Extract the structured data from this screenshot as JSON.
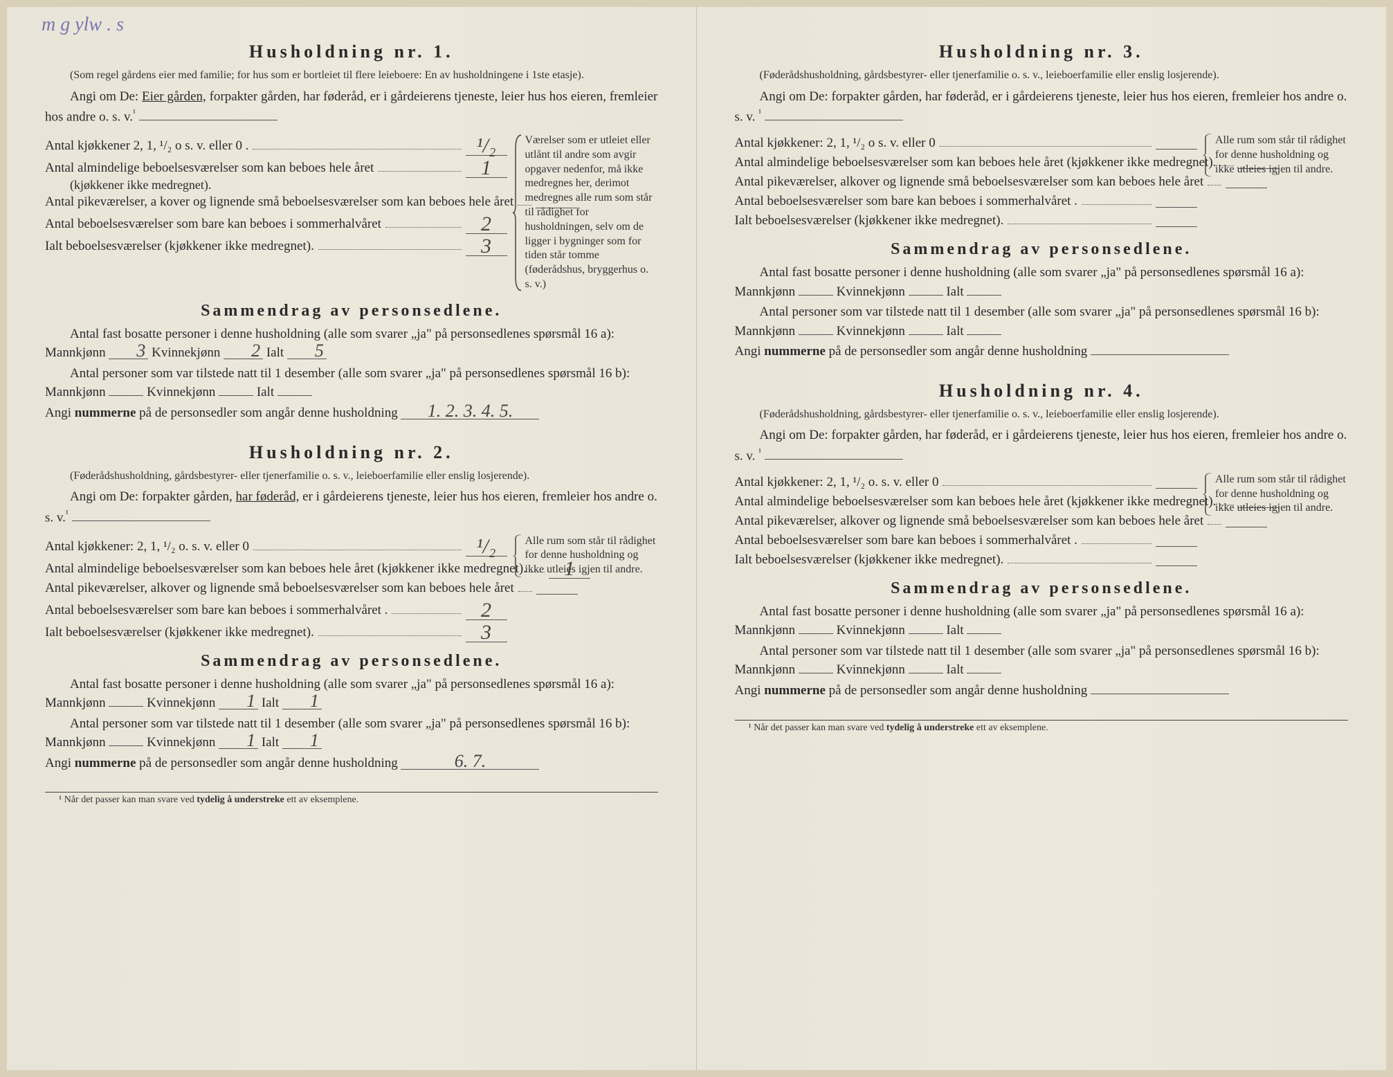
{
  "handwriting_top": "m g ylw . s",
  "households": [
    {
      "title": "Husholdning nr. 1.",
      "subtitle": "(Som regel gårdens eier med familie; for hus som er bortleiet til flere leieboere: En av husholdningene i 1ste etasje).",
      "instruction_a": "Angi om De: ",
      "instruction_underlined": "Eier gården,",
      "instruction_b": " forpakter gården, har føderåd, er i gårdeierens tjeneste, leier hus hos eieren, fremleier hos andre o. s. v.",
      "rows": {
        "r1": {
          "label": "Antal kjøkkener 2, 1, ¹/₂ o s. v. eller 0 .",
          "value": "¹/₂"
        },
        "r2": {
          "label": "Antal almindelige beboelsesværelser som kan beboes hele året",
          "sublabel": "(kjøkkener ikke medregnet).",
          "value": "1"
        },
        "r3": {
          "label": "Antal pikeværelser, a kover og lignende små beboelsesværelser som kan beboes hele året",
          "value": ""
        },
        "r4": {
          "label": "Antal beboelsesværelser som bare kan beboes i sommerhalvåret",
          "value": "2"
        },
        "r5": {
          "label": "Ialt beboelsesværelser (kjøkkener ikke medregnet).",
          "value": "3"
        }
      },
      "sidenote": "Værelser som er utleiet eller utlånt til andre som avgir opgaver nedenfor, må ikke medregnes her, derimot medregnes alle rum som står til rådighet for husholdningen, selv om de ligger i bygninger som for tiden står tomme (føderådshus, bryggerhus o. s. v.)",
      "summary_title": "Sammendrag av personsedlene.",
      "summary_p1a": "Antal fast bosatte personer i denne husholdning (alle som svarer „ja\" på personsedlenes spørsmål 16 a): Mannkjønn",
      "summary_p1_m": "3",
      "summary_p1b": "Kvinnekjønn",
      "summary_p1_k": "2",
      "summary_p1c": "Ialt",
      "summary_p1_t": "5",
      "summary_p2a": "Antal personer som var tilstede natt til 1 desember (alle som svarer „ja\" på personsedlenes spørsmål 16 b): Mannkjønn",
      "summary_p2_m": "",
      "summary_p2b": "Kvinnekjønn",
      "summary_p2_k": "",
      "summary_p2c": "Ialt",
      "summary_p2_t": "",
      "summary_p3a": "Angi ",
      "summary_p3b": "nummerne",
      "summary_p3c": " på de personsedler som angår denne husholdning",
      "summary_p3_v": "1. 2. 3. 4. 5."
    },
    {
      "title": "Husholdning nr. 2.",
      "subtitle": "(Føderådshusholdning, gårdsbestyrer- eller tjenerfamilie o. s. v., leieboerfamilie eller enslig losjerende).",
      "instruction_a": "Angi om De:  forpakter gården, ",
      "instruction_underlined": "har føderåd,",
      "instruction_b": " er i gårdeierens tjeneste, leier hus hos eieren, fremleier hos andre o. s. v.",
      "rows": {
        "r1": {
          "label": "Antal kjøkkener: 2, 1, ¹/₂ o. s. v. eller 0",
          "value": "¹/₂"
        },
        "r2": {
          "label": "Antal almindelige beboelsesværelser som kan beboes hele året (kjøkkener ikke medregnet).",
          "value": "1"
        },
        "r3": {
          "label": "Antal pikeværelser, alkover og lignende små beboelsesværelser som kan beboes hele året",
          "value": ""
        },
        "r4": {
          "label": "Antal beboelsesværelser som bare kan beboes i sommerhalvåret .",
          "value": "2"
        },
        "r5": {
          "label": "Ialt beboelsesværelser (kjøkkener ikke medregnet).",
          "value": "3"
        }
      },
      "sidenote": "Alle rum som står til rådighet for denne husholdning og ikke utleies igjen til andre.",
      "summary_title": "Sammendrag av personsedlene.",
      "summary_p1a": "Antal fast bosatte personer i denne husholdning (alle som svarer „ja\" på personsedlenes spørsmål 16 a): Mannkjønn",
      "summary_p1_m": "",
      "summary_p1b": "Kvinnekjønn",
      "summary_p1_k": "1",
      "summary_p1c": "Ialt",
      "summary_p1_t": "1",
      "summary_p2a": "Antal personer som var tilstede natt til 1 desember (alle som svarer „ja\" på personsedlenes spørsmål 16 b): Mannkjønn",
      "summary_p2_m": "",
      "summary_p2b": "Kvinnekjønn",
      "summary_p2_k": "1",
      "summary_p2c": "Ialt",
      "summary_p2_t": "1",
      "summary_p3a": "Angi ",
      "summary_p3b": "nummerne",
      "summary_p3c": " på de personsedler som angår denne husholdning",
      "summary_p3_v": "6. 7."
    },
    {
      "title": "Husholdning nr. 3.",
      "subtitle": "(Føderådshusholdning, gårdsbestyrer- eller tjenerfamilie o. s. v., leieboerfamilie eller enslig losjerende).",
      "instruction_a": "Angi om De:  forpakter gården, har føderåd, er i gårdeierens tjeneste, leier hus hos eieren, fremleier hos andre o. s. v.",
      "instruction_underlined": "",
      "instruction_b": "",
      "rows": {
        "r1": {
          "label": "Antal kjøkkener: 2, 1, ¹/₂ o s. v. eller 0",
          "value": ""
        },
        "r2": {
          "label": "Antal almindelige beboelsesværelser som kan beboes hele året (kjøkkener ikke medregnet).",
          "value": ""
        },
        "r3": {
          "label": "Antal pikeværelser, alkover og lignende små beboelsesværelser som kan beboes hele året",
          "value": ""
        },
        "r4": {
          "label": "Antal beboelsesværelser som bare kan beboes i sommerhalvåret .",
          "value": ""
        },
        "r5": {
          "label": "Ialt beboelsesværelser (kjøkkener ikke medregnet).",
          "value": ""
        }
      },
      "sidenote": "Alle rum som står til rådighet for denne husholdning og ikke utleies igjen til andre.",
      "summary_title": "Sammendrag av personsedlene.",
      "summary_p1a": "Antal fast bosatte personer i denne husholdning (alle som svarer „ja\" på personsedlenes spørsmål 16 a): Mannkjønn",
      "summary_p1_m": "",
      "summary_p1b": "Kvinnekjønn",
      "summary_p1_k": "",
      "summary_p1c": "Ialt",
      "summary_p1_t": "",
      "summary_p2a": "Antal personer som var tilstede natt til 1 desember (alle som svarer „ja\" på personsedlenes spørsmål 16 b): Mannkjønn",
      "summary_p2_m": "",
      "summary_p2b": "Kvinnekjønn",
      "summary_p2_k": "",
      "summary_p2c": "Ialt",
      "summary_p2_t": "",
      "summary_p3a": "Angi ",
      "summary_p3b": "nummerne",
      "summary_p3c": " på de personsedler som angår denne husholdning",
      "summary_p3_v": ""
    },
    {
      "title": "Husholdning nr. 4.",
      "subtitle": "(Føderådshusholdning, gårdsbestyrer- eller tjenerfamilie o. s. v., leieboerfamilie eller enslig losjerende).",
      "instruction_a": "Angi om De:  forpakter gården, har føderåd, er i gårdeierens tjeneste, leier hus hos eieren, fremleier hos andre o. s. v.",
      "instruction_underlined": "",
      "instruction_b": "",
      "rows": {
        "r1": {
          "label": "Antal kjøkkener: 2, 1, ¹/₂ o. s. v. eller 0",
          "value": ""
        },
        "r2": {
          "label": "Antal almindelige beboelsesværelser som kan beboes hele året (kjøkkener ikke medregnet).",
          "value": ""
        },
        "r3": {
          "label": "Antal pikeværelser, alkover og lignende små beboelsesværelser som kan beboes hele året",
          "value": ""
        },
        "r4": {
          "label": "Antal beboelsesværelser som bare kan beboes i sommerhalvåret .",
          "value": ""
        },
        "r5": {
          "label": "Ialt beboelsesværelser (kjøkkener ikke medregnet).",
          "value": ""
        }
      },
      "sidenote": "Alle rum som står til rådighet for denne husholdning og ikke utleies igjen til andre.",
      "summary_title": "Sammendrag av personsedlene.",
      "summary_p1a": "Antal fast bosatte personer i denne husholdning (alle som svarer „ja\" på personsedlenes spørsmål 16 a): Mannkjønn",
      "summary_p1_m": "",
      "summary_p1b": "Kvinnekjønn",
      "summary_p1_k": "",
      "summary_p1c": "Ialt",
      "summary_p1_t": "",
      "summary_p2a": "Antal personer som var tilstede natt til 1 desember (alle som svarer „ja\" på personsedlenes spørsmål 16 b): Mannkjønn",
      "summary_p2_m": "",
      "summary_p2b": "Kvinnekjønn",
      "summary_p2_k": "",
      "summary_p2c": "Ialt",
      "summary_p2_t": "",
      "summary_p3a": "Angi ",
      "summary_p3b": "nummerne",
      "summary_p3c": " på de personsedler som angår denne husholdning",
      "summary_p3_v": ""
    }
  ],
  "footnote_mark": "¹",
  "footnote": " Når det passer kan man svare ved tydelig å understreke ett av eksemplene.",
  "footnote_bold": "tydelig å understreke",
  "sup1": "¹"
}
